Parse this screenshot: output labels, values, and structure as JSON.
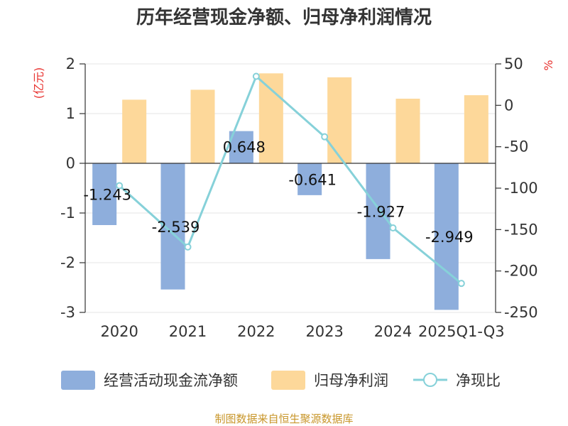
{
  "chart_data": {
    "type": "bar",
    "title": "历年经营现金净额、归母净利润情况",
    "categories": [
      "2020",
      "2021",
      "2022",
      "2023",
      "2024",
      "2025Q1-Q3"
    ],
    "left_axis": {
      "unit": "(亿元)",
      "min": -3,
      "max": 2,
      "ticks": [
        2,
        1,
        0,
        -1,
        -2,
        -3
      ]
    },
    "right_axis": {
      "unit": "%",
      "min": -250,
      "max": 50,
      "ticks": [
        50,
        0,
        -50,
        -100,
        -150,
        -200,
        -250
      ]
    },
    "series": [
      {
        "name": "经营活动现金流净额",
        "type": "bar",
        "axis": "left",
        "color": "#8eaedc",
        "values": [
          -1.243,
          -2.539,
          0.648,
          -0.641,
          -1.927,
          -2.949
        ],
        "labels": [
          "-1.243",
          "-2.539",
          "0.648",
          "-0.641",
          "-1.927",
          "-2.949"
        ]
      },
      {
        "name": "归母净利润",
        "type": "bar",
        "axis": "left",
        "color": "#fdd89a",
        "values": [
          1.28,
          1.48,
          1.81,
          1.73,
          1.3,
          1.37
        ]
      },
      {
        "name": "净现比",
        "type": "line",
        "axis": "right",
        "color": "#86d1d9",
        "values": [
          -97,
          -171,
          35,
          -38,
          -148,
          -215
        ]
      }
    ],
    "legend_position": "bottom",
    "grid": {
      "horizontal": true,
      "vertical": false
    }
  },
  "source_text": "制图数据来自恒生聚源数据库"
}
